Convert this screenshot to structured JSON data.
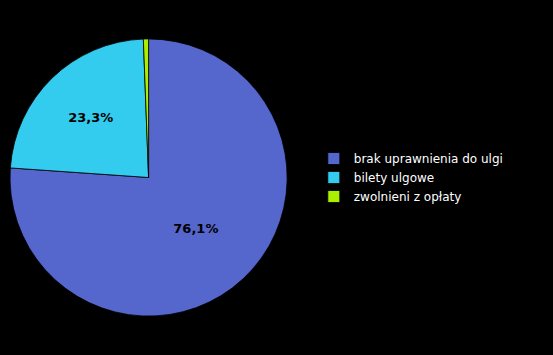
{
  "chart_data": {
    "type": "pie",
    "categories": [
      "brak uprawnienia do ulgi",
      "bilety ulgowe",
      "zwolnieni z opłaty"
    ],
    "values": [
      76.1,
      23.3,
      0.6
    ],
    "value_labels": [
      "76,1%",
      "23,3%",
      null
    ],
    "colors": [
      "#5566CC",
      "#33CCEE",
      "#AAEE00"
    ],
    "data_labels": true,
    "legend": "right"
  }
}
